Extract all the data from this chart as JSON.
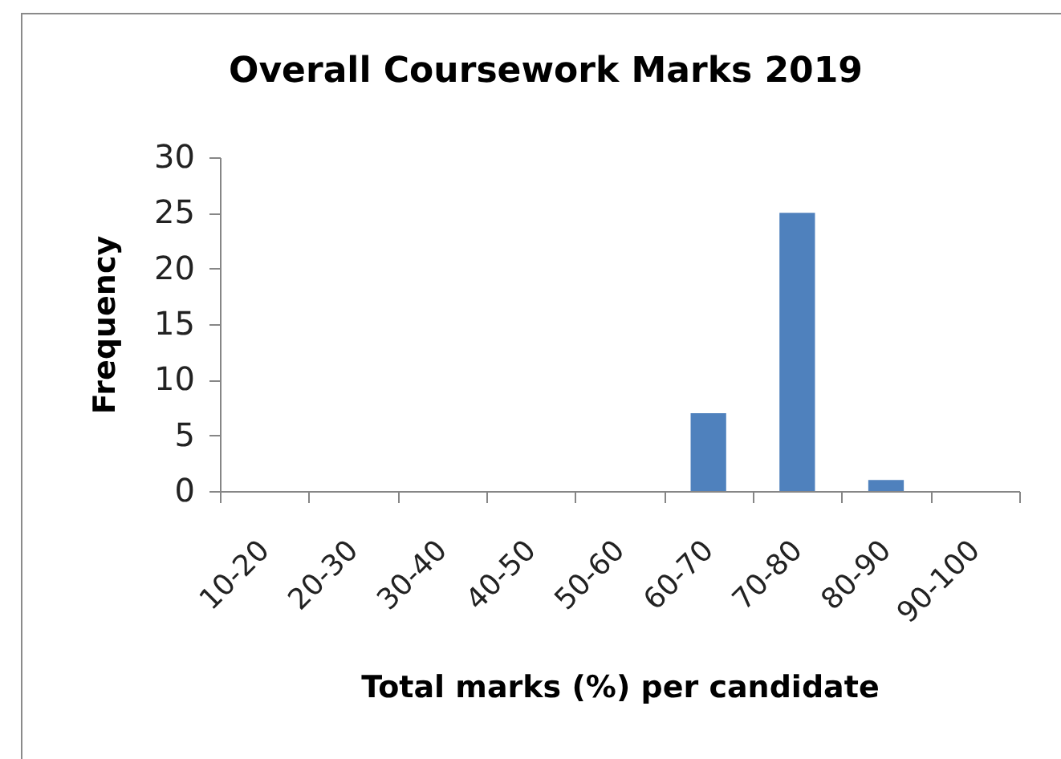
{
  "chart_data": {
    "type": "bar",
    "title": "Overall Coursework Marks 2019",
    "xlabel": "Total marks (%) per candidate",
    "ylabel": "Frequency",
    "categories": [
      "10-20",
      "20-30",
      "30-40",
      "40-50",
      "50-60",
      "60-70",
      "70-80",
      "80-90",
      "90-100"
    ],
    "values": [
      0,
      0,
      0,
      0,
      0,
      7,
      25,
      1,
      0
    ],
    "color": "#4f81bd",
    "ylim": [
      0,
      30
    ],
    "yticks": [
      0,
      5,
      10,
      15,
      20,
      25,
      30
    ]
  }
}
